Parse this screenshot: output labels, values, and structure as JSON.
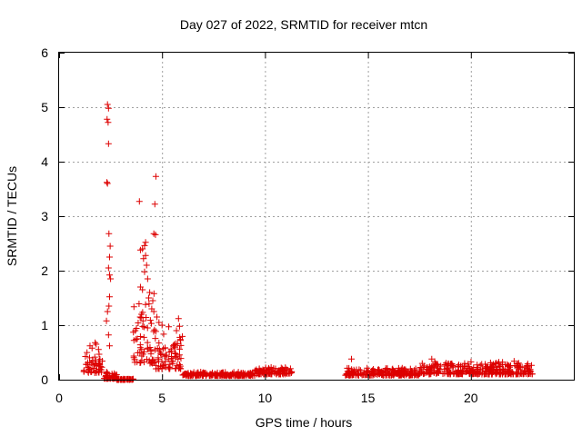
{
  "chart_data": {
    "type": "scatter",
    "title": "Day 027 of 2022, SRMTID for receiver mtcn",
    "xlabel": "GPS time / hours",
    "ylabel": "SRMTID / TECUs",
    "xlim": [
      0,
      25
    ],
    "ylim": [
      0,
      6
    ],
    "xticks": [
      0,
      5,
      10,
      15,
      20
    ],
    "yticks": [
      0,
      1,
      2,
      3,
      4,
      5,
      6
    ],
    "grid": true,
    "marker": "plus",
    "series": [
      {
        "name": "SRMTID",
        "color": "#dd0000",
        "segments": [
          {
            "x0": 1.2,
            "x1": 2.1,
            "base": 0.12,
            "amp": 0.55
          },
          {
            "x0": 2.1,
            "x1": 2.8,
            "base": 0.02,
            "amp": 0.15
          },
          {
            "x0": 2.8,
            "x1": 3.6,
            "base": 0.0,
            "amp": 0.02
          },
          {
            "x0": 3.6,
            "x1": 4.7,
            "base": 0.3,
            "amp": 1.4
          },
          {
            "x0": 4.7,
            "x1": 6.0,
            "base": 0.2,
            "amp": 0.8
          },
          {
            "x0": 6.0,
            "x1": 9.5,
            "base": 0.07,
            "amp": 0.08
          },
          {
            "x0": 9.5,
            "x1": 11.3,
            "base": 0.1,
            "amp": 0.15
          },
          {
            "x0": 13.9,
            "x1": 17.5,
            "base": 0.08,
            "amp": 0.15
          },
          {
            "x0": 17.5,
            "x1": 23.0,
            "base": 0.1,
            "amp": 0.25
          }
        ],
        "peaks": [
          {
            "x": 2.35,
            "y": 5.05
          },
          {
            "x": 2.4,
            "y": 4.98
          },
          {
            "x": 2.33,
            "y": 4.78
          },
          {
            "x": 2.38,
            "y": 4.72
          },
          {
            "x": 2.4,
            "y": 4.33
          },
          {
            "x": 2.32,
            "y": 3.62
          },
          {
            "x": 2.35,
            "y": 3.6
          },
          {
            "x": 2.42,
            "y": 2.68
          },
          {
            "x": 2.48,
            "y": 2.45
          },
          {
            "x": 2.45,
            "y": 2.25
          },
          {
            "x": 2.4,
            "y": 2.05
          },
          {
            "x": 2.45,
            "y": 1.92
          },
          {
            "x": 2.5,
            "y": 1.85
          },
          {
            "x": 2.45,
            "y": 1.52
          },
          {
            "x": 2.42,
            "y": 1.35
          },
          {
            "x": 2.35,
            "y": 1.25
          },
          {
            "x": 2.3,
            "y": 1.08
          },
          {
            "x": 2.4,
            "y": 0.82
          },
          {
            "x": 2.45,
            "y": 0.62
          },
          {
            "x": 3.9,
            "y": 3.27
          },
          {
            "x": 4.7,
            "y": 3.73
          },
          {
            "x": 4.65,
            "y": 3.22
          },
          {
            "x": 4.6,
            "y": 2.68
          },
          {
            "x": 4.68,
            "y": 2.66
          },
          {
            "x": 4.2,
            "y": 2.52
          },
          {
            "x": 4.15,
            "y": 2.46
          },
          {
            "x": 4.05,
            "y": 2.4
          },
          {
            "x": 3.95,
            "y": 2.38
          },
          {
            "x": 4.2,
            "y": 2.28
          },
          {
            "x": 4.1,
            "y": 2.22
          },
          {
            "x": 4.25,
            "y": 2.1
          },
          {
            "x": 4.15,
            "y": 1.98
          },
          {
            "x": 4.3,
            "y": 1.85
          },
          {
            "x": 3.95,
            "y": 1.7
          },
          {
            "x": 4.05,
            "y": 1.65
          },
          {
            "x": 4.4,
            "y": 1.6
          },
          {
            "x": 4.35,
            "y": 1.5
          },
          {
            "x": 4.55,
            "y": 1.45
          },
          {
            "x": 4.2,
            "y": 1.38
          },
          {
            "x": 4.5,
            "y": 1.3
          },
          {
            "x": 4.6,
            "y": 1.25
          },
          {
            "x": 4.0,
            "y": 1.2
          },
          {
            "x": 4.75,
            "y": 1.15
          },
          {
            "x": 4.85,
            "y": 1.05
          },
          {
            "x": 5.0,
            "y": 1.0
          },
          {
            "x": 5.8,
            "y": 1.12
          },
          {
            "x": 5.85,
            "y": 0.98
          },
          {
            "x": 5.7,
            "y": 0.9
          },
          {
            "x": 5.9,
            "y": 0.72
          },
          {
            "x": 5.75,
            "y": 0.66
          },
          {
            "x": 3.7,
            "y": 0.9
          },
          {
            "x": 3.8,
            "y": 0.75
          },
          {
            "x": 1.5,
            "y": 0.62
          },
          {
            "x": 1.6,
            "y": 0.58
          },
          {
            "x": 1.75,
            "y": 0.68
          },
          {
            "x": 1.8,
            "y": 0.65
          },
          {
            "x": 14.2,
            "y": 0.38
          },
          {
            "x": 18.1,
            "y": 0.38
          },
          {
            "x": 22.1,
            "y": 0.34
          }
        ]
      }
    ]
  }
}
